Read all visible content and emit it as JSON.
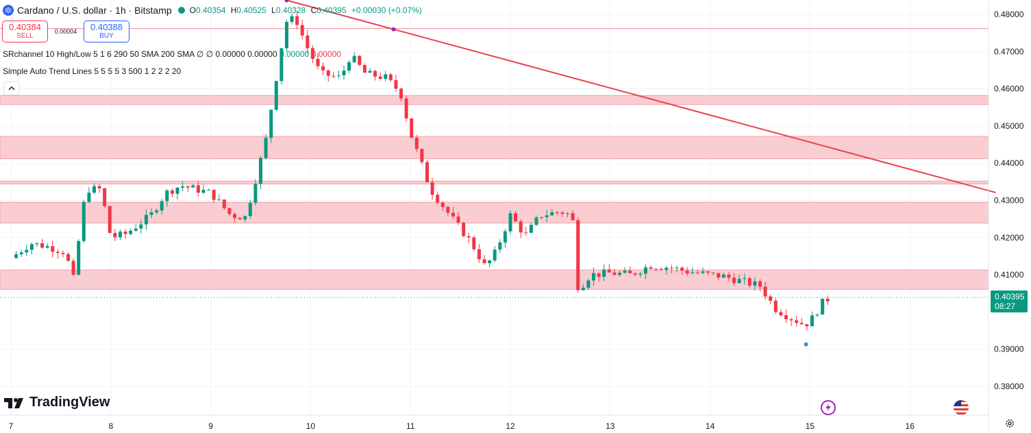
{
  "header": {
    "title": "Cardano / U.S. dollar · 1h · Bitstamp",
    "open_label": "O",
    "open": "0.40354",
    "high_label": "H",
    "high": "0.40525",
    "low_label": "L",
    "low": "0.40328",
    "close_label": "C",
    "close": "0.40395",
    "change": "+0.00030 (+0.07%)"
  },
  "trade": {
    "sell_price": "0.40384",
    "sell_label": "SELL",
    "spread": "0.00004",
    "buy_price": "0.40388",
    "buy_label": "BUY"
  },
  "indicators": {
    "sr": {
      "name": "SRchannel",
      "params": "10 High/Low 5 1 6 290 50 SMA 200 SMA",
      "phi1": "∅",
      "phi2": "∅",
      "v1": "0.00000",
      "v2": "0.00000",
      "v3": "0.00000",
      "v4": "0.00000"
    },
    "trend": {
      "name": "Simple Auto Trend Lines",
      "params": "5 5 5 5 3 500 1 2 2 2 20"
    }
  },
  "collapse_icon": "chevron-up-icon",
  "logo": {
    "text": "TradingView"
  },
  "price_tag": {
    "price": "0.40395",
    "countdown": "08:27"
  },
  "colors": {
    "up": "#089981",
    "down": "#f23645",
    "zone": "#f7bcc1",
    "trendline": "#e84150"
  },
  "chart_data": {
    "type": "candlestick",
    "x_ticks": [
      "7",
      "8",
      "9",
      "10",
      "11",
      "12",
      "13",
      "14",
      "15",
      "16"
    ],
    "y_ticks": [
      "0.48000",
      "0.47000",
      "0.46000",
      "0.45000",
      "0.44000",
      "0.43000",
      "0.42000",
      "0.41000",
      "0.39000",
      "0.38000"
    ],
    "ylim": [
      0.3775,
      0.4815
    ],
    "xlim_days": [
      7.0,
      17.0
    ],
    "resistance_line": 0.4762,
    "current_price": 0.40395,
    "sr_zones": [
      [
        0.4558,
        0.4582
      ],
      [
        0.4412,
        0.4472
      ],
      [
        0.4344,
        0.4352
      ],
      [
        0.4239,
        0.4295
      ],
      [
        0.4061,
        0.4113
      ]
    ],
    "trendline": [
      [
        9.76,
        0.4838
      ],
      [
        16.86,
        0.4321
      ]
    ],
    "pivots": [
      [
        9.76,
        0.4838,
        "#9c27b0"
      ],
      [
        10.83,
        0.476,
        "#9c27b0"
      ],
      [
        14.96,
        0.3913,
        "#2196f3"
      ]
    ],
    "anchors": [
      [
        7.0,
        0.4145
      ],
      [
        7.2,
        0.4185
      ],
      [
        7.38,
        0.4175
      ],
      [
        7.55,
        0.416
      ],
      [
        7.62,
        0.408
      ],
      [
        7.75,
        0.433
      ],
      [
        7.9,
        0.433
      ],
      [
        8.0,
        0.42
      ],
      [
        8.15,
        0.421
      ],
      [
        8.4,
        0.426
      ],
      [
        8.55,
        0.432
      ],
      [
        8.7,
        0.434
      ],
      [
        9.0,
        0.432
      ],
      [
        9.2,
        0.426
      ],
      [
        9.35,
        0.4255
      ],
      [
        9.55,
        0.446
      ],
      [
        9.75,
        0.478
      ],
      [
        9.85,
        0.479
      ],
      [
        9.95,
        0.472
      ],
      [
        10.1,
        0.464
      ],
      [
        10.3,
        0.463
      ],
      [
        10.4,
        0.469
      ],
      [
        10.55,
        0.464
      ],
      [
        10.75,
        0.463
      ],
      [
        10.9,
        0.459
      ],
      [
        11.0,
        0.448
      ],
      [
        11.2,
        0.433
      ],
      [
        11.45,
        0.424
      ],
      [
        11.6,
        0.419
      ],
      [
        11.75,
        0.412
      ],
      [
        11.85,
        0.416
      ],
      [
        12.0,
        0.426
      ],
      [
        12.15,
        0.4205
      ],
      [
        12.3,
        0.426
      ],
      [
        12.5,
        0.427
      ],
      [
        12.62,
        0.426
      ],
      [
        12.68,
        0.406
      ],
      [
        12.8,
        0.41
      ],
      [
        13.0,
        0.4105
      ],
      [
        13.2,
        0.41
      ],
      [
        13.4,
        0.4125
      ],
      [
        13.6,
        0.412
      ],
      [
        13.75,
        0.411
      ],
      [
        14.0,
        0.41
      ],
      [
        14.15,
        0.4095
      ],
      [
        14.35,
        0.408
      ],
      [
        14.5,
        0.407
      ],
      [
        14.65,
        0.401
      ],
      [
        14.8,
        0.3985
      ],
      [
        14.95,
        0.3965
      ],
      [
        15.05,
        0.399
      ],
      [
        15.1,
        0.402
      ],
      [
        15.2,
        0.4039
      ]
    ]
  }
}
